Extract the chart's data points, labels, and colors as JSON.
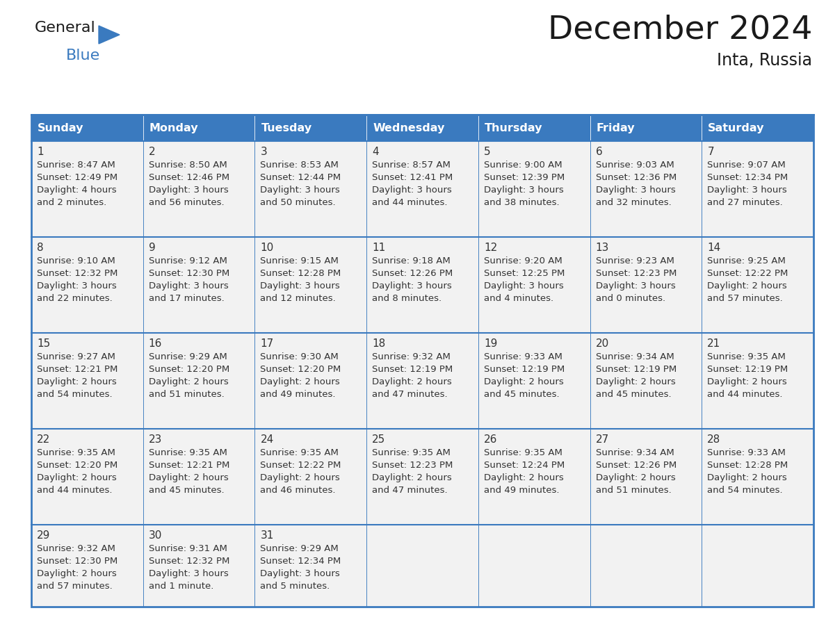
{
  "title": "December 2024",
  "subtitle": "Inta, Russia",
  "days_of_week": [
    "Sunday",
    "Monday",
    "Tuesday",
    "Wednesday",
    "Thursday",
    "Friday",
    "Saturday"
  ],
  "header_bg": "#3a7abf",
  "header_text": "#ffffff",
  "cell_bg": "#f2f2f2",
  "border_color": "#3a7abf",
  "text_color": "#333333",
  "title_color": "#1a1a1a",
  "fig_width": 11.88,
  "fig_height": 9.18,
  "dpi": 100,
  "calendar_data": [
    [
      {
        "day": 1,
        "sunrise": "8:47 AM",
        "sunset": "12:49 PM",
        "daylight": "4 hours and 2 minutes."
      },
      {
        "day": 2,
        "sunrise": "8:50 AM",
        "sunset": "12:46 PM",
        "daylight": "3 hours and 56 minutes."
      },
      {
        "day": 3,
        "sunrise": "8:53 AM",
        "sunset": "12:44 PM",
        "daylight": "3 hours and 50 minutes."
      },
      {
        "day": 4,
        "sunrise": "8:57 AM",
        "sunset": "12:41 PM",
        "daylight": "3 hours and 44 minutes."
      },
      {
        "day": 5,
        "sunrise": "9:00 AM",
        "sunset": "12:39 PM",
        "daylight": "3 hours and 38 minutes."
      },
      {
        "day": 6,
        "sunrise": "9:03 AM",
        "sunset": "12:36 PM",
        "daylight": "3 hours and 32 minutes."
      },
      {
        "day": 7,
        "sunrise": "9:07 AM",
        "sunset": "12:34 PM",
        "daylight": "3 hours and 27 minutes."
      }
    ],
    [
      {
        "day": 8,
        "sunrise": "9:10 AM",
        "sunset": "12:32 PM",
        "daylight": "3 hours and 22 minutes."
      },
      {
        "day": 9,
        "sunrise": "9:12 AM",
        "sunset": "12:30 PM",
        "daylight": "3 hours and 17 minutes."
      },
      {
        "day": 10,
        "sunrise": "9:15 AM",
        "sunset": "12:28 PM",
        "daylight": "3 hours and 12 minutes."
      },
      {
        "day": 11,
        "sunrise": "9:18 AM",
        "sunset": "12:26 PM",
        "daylight": "3 hours and 8 minutes."
      },
      {
        "day": 12,
        "sunrise": "9:20 AM",
        "sunset": "12:25 PM",
        "daylight": "3 hours and 4 minutes."
      },
      {
        "day": 13,
        "sunrise": "9:23 AM",
        "sunset": "12:23 PM",
        "daylight": "3 hours and 0 minutes."
      },
      {
        "day": 14,
        "sunrise": "9:25 AM",
        "sunset": "12:22 PM",
        "daylight": "2 hours and 57 minutes."
      }
    ],
    [
      {
        "day": 15,
        "sunrise": "9:27 AM",
        "sunset": "12:21 PM",
        "daylight": "2 hours and 54 minutes."
      },
      {
        "day": 16,
        "sunrise": "9:29 AM",
        "sunset": "12:20 PM",
        "daylight": "2 hours and 51 minutes."
      },
      {
        "day": 17,
        "sunrise": "9:30 AM",
        "sunset": "12:20 PM",
        "daylight": "2 hours and 49 minutes."
      },
      {
        "day": 18,
        "sunrise": "9:32 AM",
        "sunset": "12:19 PM",
        "daylight": "2 hours and 47 minutes."
      },
      {
        "day": 19,
        "sunrise": "9:33 AM",
        "sunset": "12:19 PM",
        "daylight": "2 hours and 45 minutes."
      },
      {
        "day": 20,
        "sunrise": "9:34 AM",
        "sunset": "12:19 PM",
        "daylight": "2 hours and 45 minutes."
      },
      {
        "day": 21,
        "sunrise": "9:35 AM",
        "sunset": "12:19 PM",
        "daylight": "2 hours and 44 minutes."
      }
    ],
    [
      {
        "day": 22,
        "sunrise": "9:35 AM",
        "sunset": "12:20 PM",
        "daylight": "2 hours and 44 minutes."
      },
      {
        "day": 23,
        "sunrise": "9:35 AM",
        "sunset": "12:21 PM",
        "daylight": "2 hours and 45 minutes."
      },
      {
        "day": 24,
        "sunrise": "9:35 AM",
        "sunset": "12:22 PM",
        "daylight": "2 hours and 46 minutes."
      },
      {
        "day": 25,
        "sunrise": "9:35 AM",
        "sunset": "12:23 PM",
        "daylight": "2 hours and 47 minutes."
      },
      {
        "day": 26,
        "sunrise": "9:35 AM",
        "sunset": "12:24 PM",
        "daylight": "2 hours and 49 minutes."
      },
      {
        "day": 27,
        "sunrise": "9:34 AM",
        "sunset": "12:26 PM",
        "daylight": "2 hours and 51 minutes."
      },
      {
        "day": 28,
        "sunrise": "9:33 AM",
        "sunset": "12:28 PM",
        "daylight": "2 hours and 54 minutes."
      }
    ],
    [
      {
        "day": 29,
        "sunrise": "9:32 AM",
        "sunset": "12:30 PM",
        "daylight": "2 hours and 57 minutes."
      },
      {
        "day": 30,
        "sunrise": "9:31 AM",
        "sunset": "12:32 PM",
        "daylight": "3 hours and 1 minute."
      },
      {
        "day": 31,
        "sunrise": "9:29 AM",
        "sunset": "12:34 PM",
        "daylight": "3 hours and 5 minutes."
      },
      null,
      null,
      null,
      null
    ]
  ],
  "logo_triangle_color": "#3a7abf",
  "logo_general_color": "#1a1a1a",
  "logo_blue_color": "#3a7abf"
}
